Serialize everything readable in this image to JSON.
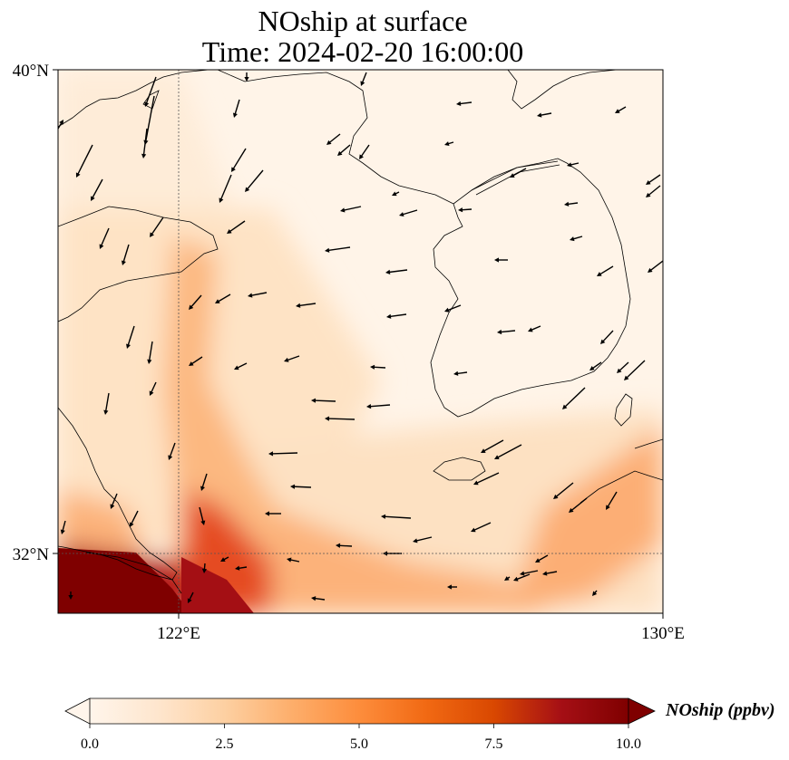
{
  "title": {
    "line1": "NOship at surface",
    "line2": "Time: 2024-02-20 16:00:00"
  },
  "map": {
    "lon_range": [
      120,
      130
    ],
    "lat_range": [
      31,
      40
    ],
    "reference_lines": {
      "lon": 122,
      "lat": 32
    },
    "lat_ticks": [
      {
        "value": 40,
        "label": "40°N"
      },
      {
        "value": 32,
        "label": "32°N"
      }
    ],
    "lon_ticks": [
      {
        "value": 122,
        "label": "122°E"
      },
      {
        "value": 130,
        "label": "130°E"
      }
    ],
    "variable": "NOship",
    "units": "ppbv"
  },
  "colorbar": {
    "label": "NOship (ppbv)",
    "min": 0.0,
    "max": 10.0,
    "ticks": [
      {
        "value": 0.0,
        "label": "0.0"
      },
      {
        "value": 2.5,
        "label": "2.5"
      },
      {
        "value": 5.0,
        "label": "5.0"
      },
      {
        "value": 7.5,
        "label": "7.5"
      },
      {
        "value": 10.0,
        "label": "10.0"
      }
    ],
    "extend": "both",
    "colormap": [
      "#fff5eb",
      "#fee6ce",
      "#fdd0a2",
      "#fdae6b",
      "#fd8d3c",
      "#f16913",
      "#d94801",
      "#a50f15",
      "#7f0000"
    ]
  }
}
